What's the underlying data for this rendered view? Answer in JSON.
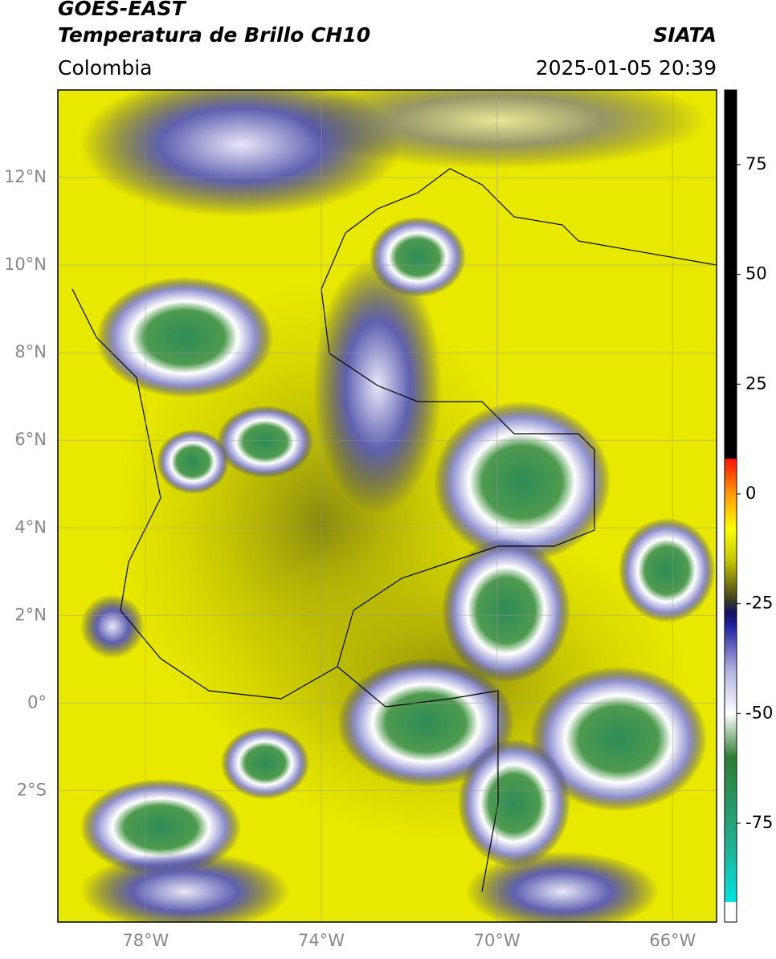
{
  "header": {
    "satellite": "GOES-EAST",
    "product": "Temperatura de Brillo CH10",
    "source": "SIATA",
    "region": "Colombia",
    "datetime": "2025-01-05 20:39"
  },
  "map": {
    "lonlim": [
      -80,
      -65
    ],
    "latlim": [
      -5,
      14
    ],
    "lon_ticks": [
      {
        "value": -78,
        "label": "78°W"
      },
      {
        "value": -74,
        "label": "74°W"
      },
      {
        "value": -70,
        "label": "70°W"
      },
      {
        "value": -66,
        "label": "66°W"
      }
    ],
    "lat_ticks": [
      {
        "value": 12,
        "label": "12°N"
      },
      {
        "value": 10,
        "label": "10°N"
      },
      {
        "value": 8,
        "label": "8°N"
      },
      {
        "value": 6,
        "label": "6°N"
      },
      {
        "value": 4,
        "label": "4°N"
      },
      {
        "value": 2,
        "label": "2°N"
      },
      {
        "value": 0,
        "label": "0°"
      },
      {
        "value": -2,
        "label": "2°S"
      }
    ]
  },
  "colorbar": {
    "lim": [
      -97.5,
      92
    ],
    "ticks": [
      75,
      50,
      25,
      0,
      -25,
      -50,
      -75
    ],
    "colors": [
      {
        "value": -97.5,
        "color": "#ffffff"
      },
      {
        "value": -93,
        "color": "#ffffff"
      },
      {
        "value": -92.9,
        "color": "#00e5e5"
      },
      {
        "value": -80,
        "color": "#20b090"
      },
      {
        "value": -60,
        "color": "#2e7d32"
      },
      {
        "value": -50,
        "color": "#ffffff"
      },
      {
        "value": -40,
        "color": "#b0b0e0"
      },
      {
        "value": -30,
        "color": "#2020a0"
      },
      {
        "value": -27,
        "color": "#101060"
      },
      {
        "value": -24,
        "color": "#404020"
      },
      {
        "value": -15,
        "color": "#c8c800"
      },
      {
        "value": -8,
        "color": "#ffff00"
      },
      {
        "value": 0,
        "color": "#ff9900"
      },
      {
        "value": 8,
        "color": "#ff1100"
      },
      {
        "value": 8.1,
        "color": "#000000"
      },
      {
        "value": 92,
        "color": "#000000"
      }
    ]
  }
}
